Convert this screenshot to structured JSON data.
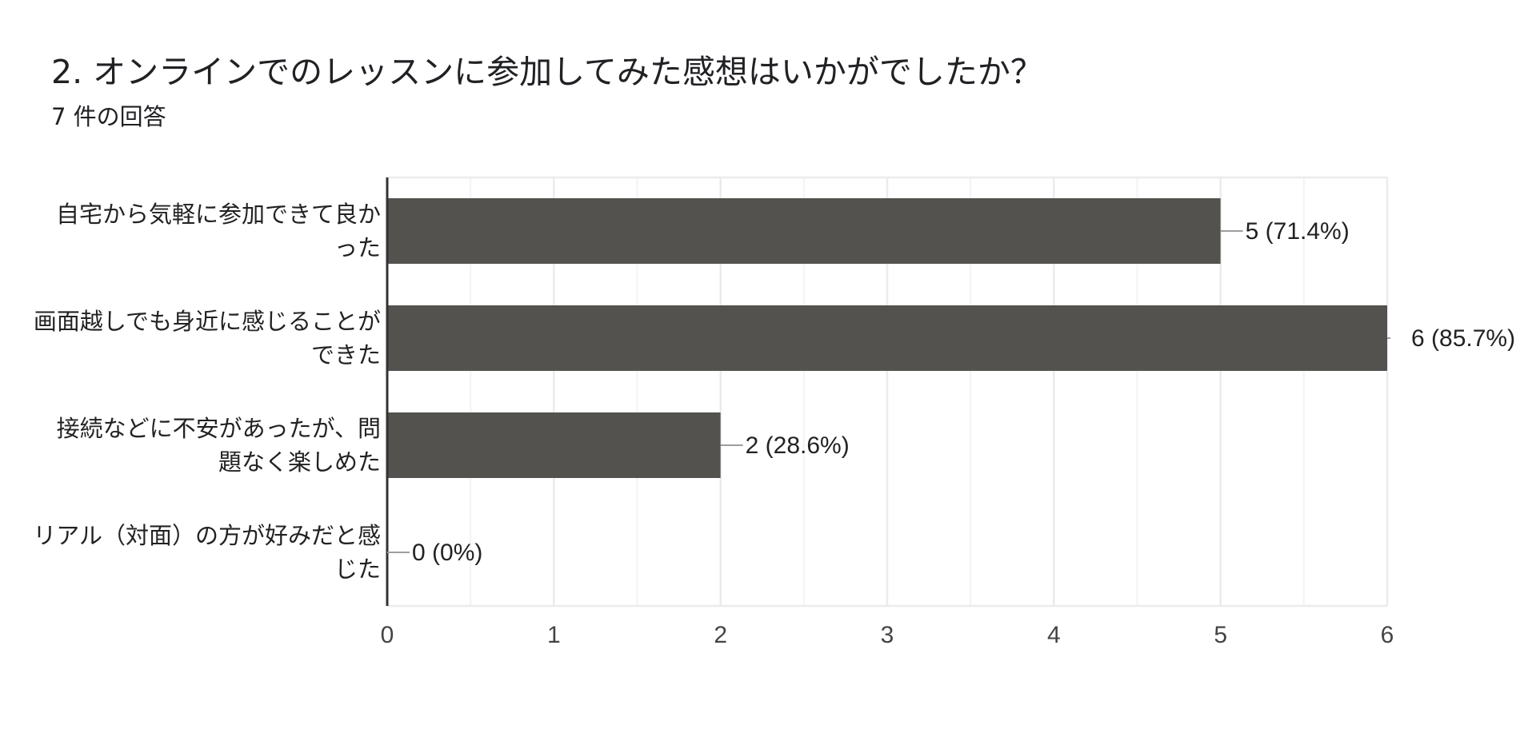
{
  "question": {
    "title": "2. オンラインでのレッスンに参加してみた感想はいかがでしたか？",
    "response_count": "7 件の回答"
  },
  "colors": {
    "bar": "#53524f",
    "grid": "#ebebeb",
    "axis": "#333333",
    "leader": "#9e9e9e"
  },
  "chart_data": {
    "type": "bar",
    "orientation": "horizontal",
    "categories": [
      [
        "自宅から気軽に参加できて良か",
        "った"
      ],
      [
        "画面越しでも身近に感じることが",
        "できた"
      ],
      [
        "接続などに不安があったが、問",
        "題なく楽しめた"
      ],
      [
        "リアル（対面）の方が好みだと感",
        "じた"
      ]
    ],
    "values": [
      5,
      6,
      2,
      0
    ],
    "data_labels": [
      "5 (71.4%)",
      "6 (85.7%)",
      "2 (28.6%)",
      "0 (0%)"
    ],
    "xlim": [
      0,
      6
    ],
    "xticks": [
      "0",
      "1",
      "2",
      "3",
      "4",
      "5",
      "6"
    ],
    "minor_grid": true,
    "grid": true,
    "title": "",
    "xlabel": "",
    "ylabel": ""
  }
}
